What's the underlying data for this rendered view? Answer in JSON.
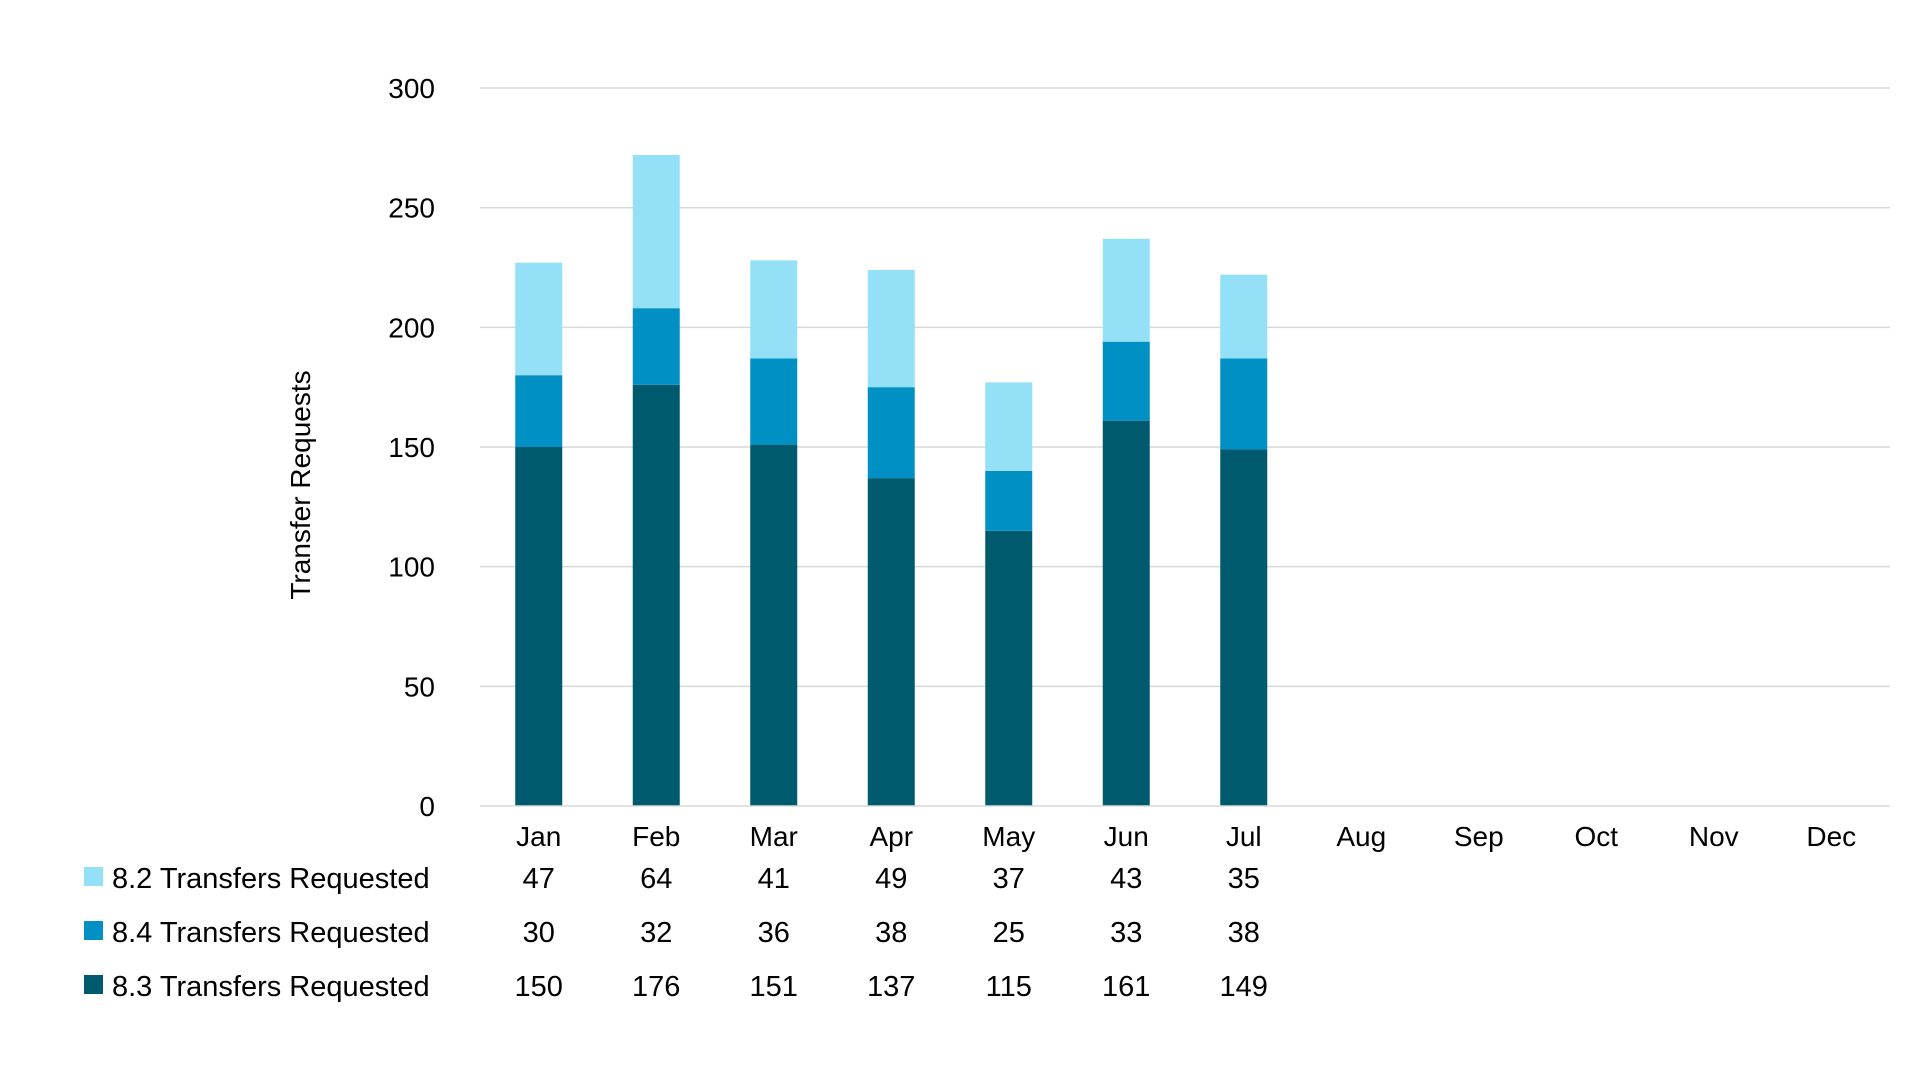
{
  "chart_data": {
    "type": "bar",
    "stacked": true,
    "ylabel": "Transfer Requests",
    "ylim": [
      0,
      300
    ],
    "yticks": [
      "0",
      "50",
      "100",
      "150",
      "200",
      "250",
      "300"
    ],
    "grid": true,
    "legend_position": "bottom-left data table",
    "categories": [
      "Jan",
      "Feb",
      "Mar",
      "Apr",
      "May",
      "Jun",
      "Jul",
      "Aug",
      "Sep",
      "Oct",
      "Nov",
      "Dec"
    ],
    "series": [
      {
        "name": "8.3 Transfers Requested",
        "color": "#005a6e",
        "values": [
          150,
          176,
          151,
          137,
          115,
          161,
          149,
          null,
          null,
          null,
          null,
          null
        ]
      },
      {
        "name": "8.4 Transfers Requested",
        "color": "#0090c4",
        "values": [
          30,
          32,
          36,
          38,
          25,
          33,
          38,
          null,
          null,
          null,
          null,
          null
        ]
      },
      {
        "name": "8.2 Transfers Requested",
        "color": "#94e0f6",
        "values": [
          47,
          64,
          41,
          49,
          37,
          43,
          35,
          null,
          null,
          null,
          null,
          null
        ]
      }
    ],
    "table_order": [
      "8.2 Transfers Requested",
      "8.4 Transfers Requested",
      "8.3 Transfers Requested"
    ]
  }
}
